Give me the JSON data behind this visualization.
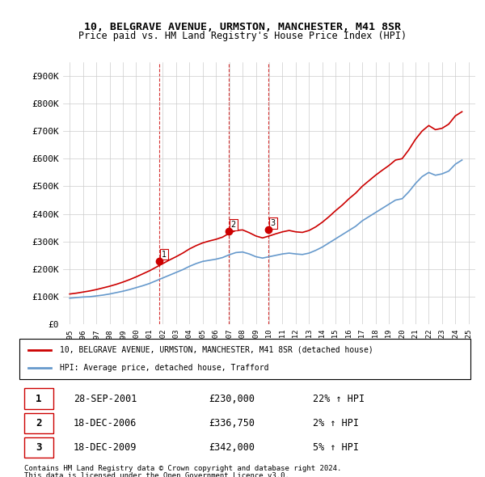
{
  "title_line1": "10, BELGRAVE AVENUE, URMSTON, MANCHESTER, M41 8SR",
  "title_line2": "Price paid vs. HM Land Registry's House Price Index (HPI)",
  "legend_label_red": "10, BELGRAVE AVENUE, URMSTON, MANCHESTER, M41 8SR (detached house)",
  "legend_label_blue": "HPI: Average price, detached house, Trafford",
  "footer_line1": "Contains HM Land Registry data © Crown copyright and database right 2024.",
  "footer_line2": "This data is licensed under the Open Government Licence v3.0.",
  "transactions": [
    {
      "num": 1,
      "date": "28-SEP-2001",
      "price": "£230,000",
      "change": "22% ↑ HPI"
    },
    {
      "num": 2,
      "date": "18-DEC-2006",
      "price": "£336,750",
      "change": "2% ↑ HPI"
    },
    {
      "num": 3,
      "date": "18-DEC-2009",
      "price": "£342,000",
      "change": "5% ↑ HPI"
    }
  ],
  "transaction_dates": [
    2001.75,
    2006.96,
    2009.96
  ],
  "transaction_prices": [
    230000,
    336750,
    342000
  ],
  "red_color": "#cc0000",
  "blue_color": "#6699cc",
  "dashed_color": "#cc0000",
  "ylim": [
    0,
    950000
  ],
  "xlim_start": 1994.5,
  "xlim_end": 2025.5,
  "yticks": [
    0,
    100000,
    200000,
    300000,
    400000,
    500000,
    600000,
    700000,
    800000,
    900000
  ],
  "ytick_labels": [
    "£0",
    "£100K",
    "£200K",
    "£300K",
    "£400K",
    "£500K",
    "£600K",
    "£700K",
    "£800K",
    "£900K"
  ],
  "xticks": [
    1995,
    1996,
    1997,
    1998,
    1999,
    2000,
    2001,
    2002,
    2003,
    2004,
    2005,
    2006,
    2007,
    2008,
    2009,
    2010,
    2011,
    2012,
    2013,
    2014,
    2015,
    2016,
    2017,
    2018,
    2019,
    2020,
    2021,
    2022,
    2023,
    2024,
    2025
  ],
  "hpi_years": [
    1995,
    1995.5,
    1996,
    1996.5,
    1997,
    1997.5,
    1998,
    1998.5,
    1999,
    1999.5,
    2000,
    2000.5,
    2001,
    2001.5,
    2002,
    2002.5,
    2003,
    2003.5,
    2004,
    2004.5,
    2005,
    2005.5,
    2006,
    2006.5,
    2007,
    2007.5,
    2008,
    2008.5,
    2009,
    2009.5,
    2010,
    2010.5,
    2011,
    2011.5,
    2012,
    2012.5,
    2013,
    2013.5,
    2014,
    2014.5,
    2015,
    2015.5,
    2016,
    2016.5,
    2017,
    2017.5,
    2018,
    2018.5,
    2019,
    2019.5,
    2020,
    2020.5,
    2021,
    2021.5,
    2022,
    2022.5,
    2023,
    2023.5,
    2024,
    2024.5
  ],
  "hpi_values": [
    95000,
    97000,
    99000,
    100000,
    103000,
    106000,
    110000,
    115000,
    120000,
    126000,
    133000,
    140000,
    148000,
    158000,
    168000,
    178000,
    188000,
    198000,
    210000,
    220000,
    228000,
    232000,
    236000,
    242000,
    252000,
    260000,
    262000,
    255000,
    245000,
    240000,
    245000,
    250000,
    255000,
    258000,
    255000,
    253000,
    258000,
    268000,
    280000,
    295000,
    310000,
    325000,
    340000,
    355000,
    375000,
    390000,
    405000,
    420000,
    435000,
    450000,
    455000,
    480000,
    510000,
    535000,
    550000,
    540000,
    545000,
    555000,
    580000,
    595000
  ],
  "red_years": [
    1995,
    1995.5,
    1996,
    1996.5,
    1997,
    1997.5,
    1998,
    1998.5,
    1999,
    1999.5,
    2000,
    2000.5,
    2001,
    2001.5,
    2002,
    2002.5,
    2003,
    2003.5,
    2004,
    2004.5,
    2005,
    2005.5,
    2006,
    2006.5,
    2007,
    2007.5,
    2008,
    2008.5,
    2009,
    2009.5,
    2010,
    2010.5,
    2011,
    2011.5,
    2012,
    2012.5,
    2013,
    2013.5,
    2014,
    2014.5,
    2015,
    2015.5,
    2016,
    2016.5,
    2017,
    2017.5,
    2018,
    2018.5,
    2019,
    2019.5,
    2020,
    2020.5,
    2021,
    2021.5,
    2022,
    2022.5,
    2023,
    2023.5,
    2024,
    2024.5
  ],
  "red_values": [
    110000,
    113000,
    117000,
    121000,
    126000,
    132000,
    138000,
    145000,
    153000,
    162000,
    172000,
    183000,
    194000,
    207000,
    220000,
    233000,
    245000,
    258000,
    273000,
    285000,
    295000,
    302000,
    308000,
    316000,
    330000,
    340000,
    342000,
    332000,
    320000,
    313000,
    320000,
    328000,
    335000,
    340000,
    335000,
    333000,
    340000,
    353000,
    370000,
    390000,
    412000,
    432000,
    455000,
    475000,
    500000,
    520000,
    540000,
    558000,
    575000,
    595000,
    600000,
    632000,
    670000,
    700000,
    720000,
    705000,
    710000,
    725000,
    755000,
    770000
  ]
}
